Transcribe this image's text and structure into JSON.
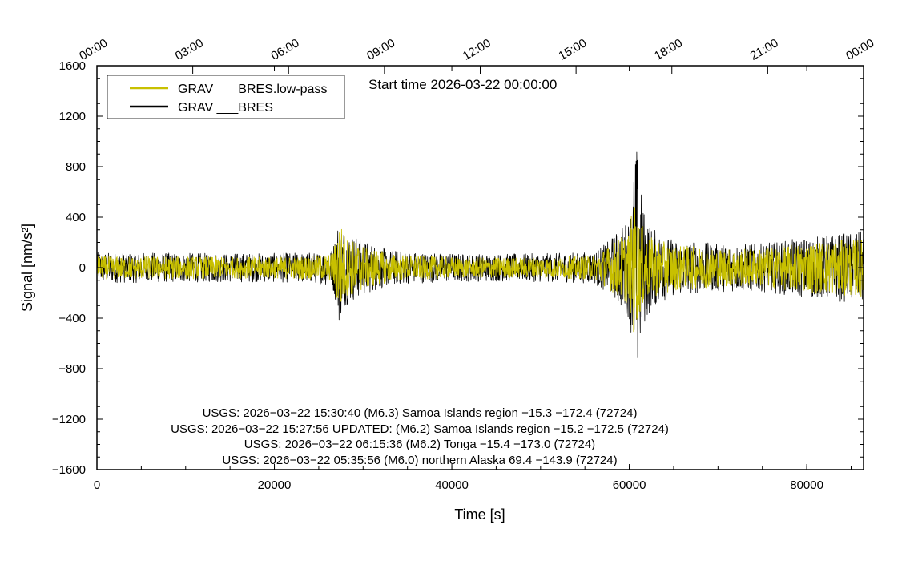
{
  "chart_data": {
    "type": "line",
    "xlabel": "Time [s]",
    "ylabel": "Signal [nm/s²]",
    "xlim": [
      0,
      86400
    ],
    "ylim": [
      -1600,
      1600
    ],
    "x_ticks": [
      0,
      20000,
      40000,
      60000,
      80000
    ],
    "y_ticks": [
      -1600,
      -1200,
      -800,
      -400,
      0,
      400,
      800,
      1200,
      1600
    ],
    "top_axis_ticks": [
      "00:00",
      "03:00",
      "06:00",
      "09:00",
      "12:00",
      "15:00",
      "18:00",
      "21:00",
      "00:00"
    ],
    "start_time": "Start time 2026-03-22 00:00:00",
    "grid": false,
    "legend_position": "top-left",
    "series": [
      {
        "name": "GRAV ___BRES.low-pass",
        "color": "#c8c000",
        "envelope": [
          [
            0,
            90
          ],
          [
            5000,
            90
          ],
          [
            10000,
            90
          ],
          [
            15000,
            85
          ],
          [
            20000,
            85
          ],
          [
            25000,
            95
          ],
          [
            26500,
            110
          ],
          [
            27000,
            250
          ],
          [
            27300,
            400
          ],
          [
            28000,
            250
          ],
          [
            30000,
            180
          ],
          [
            33000,
            110
          ],
          [
            37000,
            90
          ],
          [
            42000,
            80
          ],
          [
            47000,
            80
          ],
          [
            52000,
            85
          ],
          [
            56000,
            95
          ],
          [
            57500,
            160
          ],
          [
            60000,
            300
          ],
          [
            60500,
            550
          ],
          [
            61000,
            400
          ],
          [
            62000,
            250
          ],
          [
            65000,
            180
          ],
          [
            70000,
            150
          ],
          [
            75000,
            150
          ],
          [
            80000,
            200
          ],
          [
            86400,
            230
          ]
        ]
      },
      {
        "name": "GRAV ___BRES",
        "color": "#000000",
        "envelope": [
          [
            0,
            120
          ],
          [
            5000,
            120
          ],
          [
            10000,
            115
          ],
          [
            15000,
            115
          ],
          [
            20000,
            115
          ],
          [
            25000,
            125
          ],
          [
            26500,
            150
          ],
          [
            27000,
            300
          ],
          [
            27300,
            440
          ],
          [
            28000,
            300
          ],
          [
            30000,
            220
          ],
          [
            33000,
            140
          ],
          [
            37000,
            120
          ],
          [
            42000,
            110
          ],
          [
            47000,
            110
          ],
          [
            52000,
            115
          ],
          [
            56000,
            125
          ],
          [
            57500,
            200
          ],
          [
            60000,
            400
          ],
          [
            60800,
            1000
          ],
          [
            61500,
            500
          ],
          [
            62500,
            320
          ],
          [
            65000,
            220
          ],
          [
            70000,
            190
          ],
          [
            75000,
            190
          ],
          [
            80000,
            240
          ],
          [
            86400,
            290
          ]
        ]
      }
    ],
    "annotations": [
      "USGS: 2026−03−22 15:30:40 (M6.3) Samoa Islands region −15.3 −172.4 (72724)",
      "USGS: 2026−03−22 15:27:56 UPDATED: (M6.2) Samoa Islands region −15.2 −172.5 (72724)",
      "USGS: 2026−03−22 06:15:36 (M6.2) Tonga −15.4 −173.0 (72724)",
      "USGS: 2026−03−22 05:35:56 (M6.0) northern Alaska 69.4 −143.9 (72724)"
    ]
  }
}
